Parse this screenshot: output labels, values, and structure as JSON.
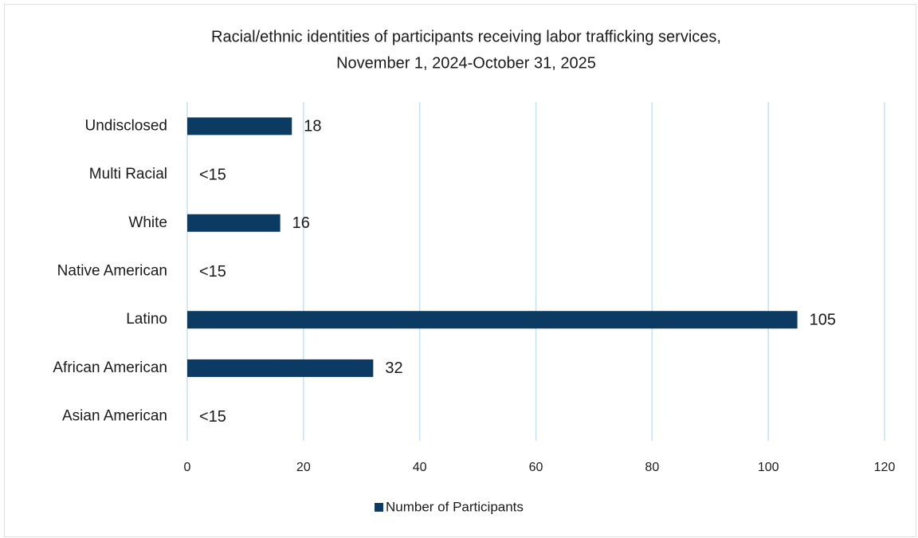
{
  "chart_data": {
    "type": "hbar",
    "title": [
      "Racial/ethnic identities of participants receiving labor trafficking services,",
      "November 1, 2024-October 31, 2025"
    ],
    "categories": [
      "Asian American",
      "African American",
      "Latino",
      "Native American",
      "White",
      "Multi Racial",
      "Undisclosed"
    ],
    "series": [
      {
        "name": "Number of Participants",
        "color": "#0b3a63",
        "values": [
          null,
          32,
          105,
          null,
          16,
          null,
          18
        ],
        "value_labels": [
          "<15",
          "32",
          "105",
          "<15",
          "16",
          "<15",
          "18"
        ]
      }
    ],
    "xlim": [
      0,
      120
    ],
    "xticks": [
      0,
      20,
      40,
      60,
      80,
      100,
      120
    ],
    "grid": true,
    "legend": "bottom"
  }
}
